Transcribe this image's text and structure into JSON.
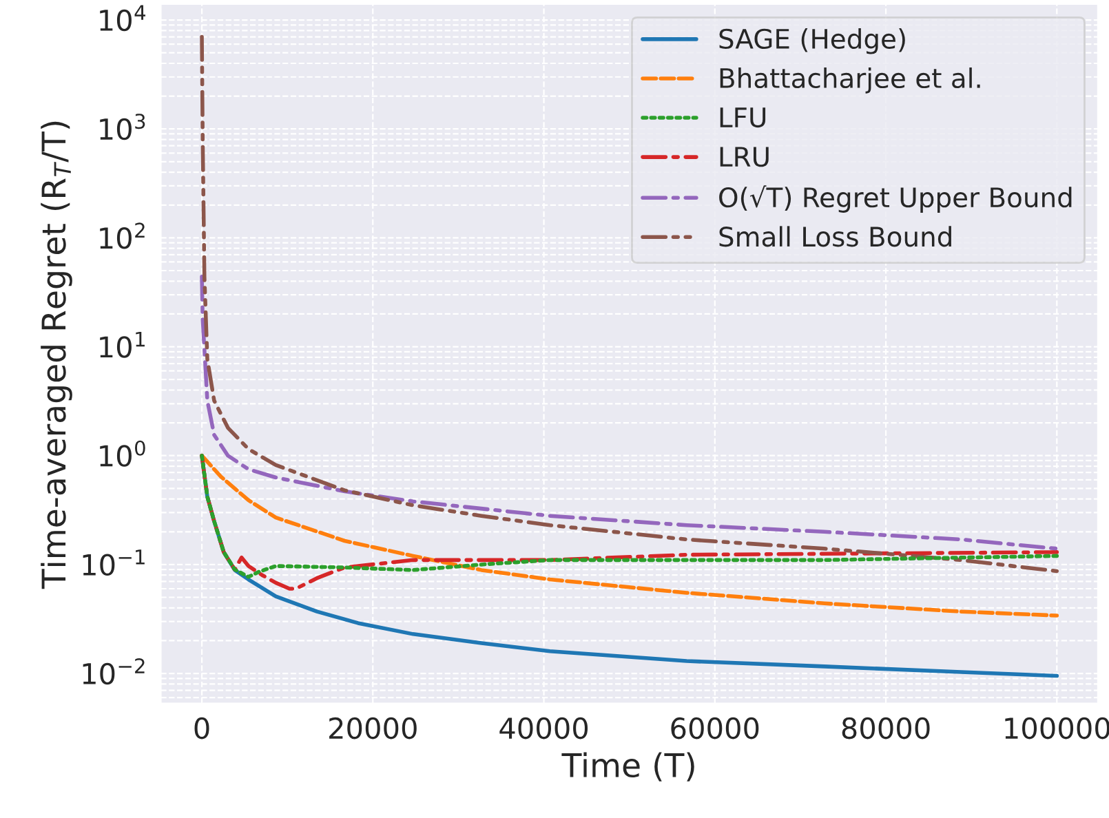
{
  "chart_data": {
    "type": "line",
    "xlabel": "Time (T)",
    "ylabel": "Time-averaged Regret (R$_{T}$/T)",
    "log": "y",
    "grid": true,
    "legend": "top right",
    "xlim": [
      -4800,
      104800
    ],
    "ylim": [
      0.0053,
      14000
    ],
    "xticks": [
      0,
      20000,
      40000,
      60000,
      80000,
      100000
    ],
    "yticks": [
      {
        "value": 0.01,
        "label": "10$^{−2}$"
      },
      {
        "value": 0.1,
        "label": "10$^{−1}$"
      },
      {
        "value": 1,
        "label": "10$^{0}$"
      },
      {
        "value": 10,
        "label": "10$^{1}$"
      },
      {
        "value": 100,
        "label": "10$^{2}$"
      },
      {
        "value": 1000,
        "label": "10$^{3}$"
      },
      {
        "value": 10000,
        "label": "10$^{4}$"
      }
    ],
    "series": [
      {
        "name": "SAGE (Hedge)",
        "color": "#1f77b4",
        "line_style": "solid",
        "x": [
          1,
          640,
          1440,
          2560,
          3850,
          5450,
          8650,
          13460,
          18270,
          24700,
          32700,
          40700,
          56700,
          72800,
          88800,
          100000
        ],
        "values": [
          1.0,
          0.42,
          0.25,
          0.13,
          0.089,
          0.073,
          0.051,
          0.037,
          0.029,
          0.023,
          0.019,
          0.016,
          0.013,
          0.0116,
          0.0103,
          0.0095
        ]
      },
      {
        "name": "Bhattacharjee et al.",
        "color": "#ff7f0e",
        "line_style": "dashed",
        "x": [
          1,
          2240,
          5450,
          8650,
          16700,
          24700,
          32700,
          40700,
          56700,
          72800,
          88800,
          100000
        ],
        "values": [
          1.0,
          0.64,
          0.39,
          0.27,
          0.165,
          0.12,
          0.089,
          0.073,
          0.055,
          0.044,
          0.037,
          0.034
        ]
      },
      {
        "name": "LFU",
        "color": "#2ca02c",
        "line_style": "dotted",
        "x": [
          1,
          640,
          1440,
          2560,
          3850,
          5450,
          6700,
          8650,
          16700,
          24700,
          32700,
          40700,
          56700,
          72800,
          100000
        ],
        "values": [
          1.0,
          0.42,
          0.25,
          0.13,
          0.09,
          0.077,
          0.086,
          0.097,
          0.094,
          0.089,
          0.1,
          0.11,
          0.11,
          0.11,
          0.12
        ]
      },
      {
        "name": "LRU",
        "color": "#d62728",
        "line_style": "dashdot",
        "x": [
          1,
          640,
          1440,
          2560,
          3850,
          4650,
          5450,
          7050,
          8650,
          10250,
          11000,
          13460,
          16700,
          24700,
          40700,
          56700,
          100000
        ],
        "values": [
          1.0,
          0.42,
          0.25,
          0.13,
          0.09,
          0.116,
          0.097,
          0.08,
          0.068,
          0.06,
          0.06,
          0.075,
          0.094,
          0.11,
          0.11,
          0.123,
          0.13
        ]
      },
      {
        "name": "O(√T) Regret Upper Bound",
        "color": "#9467bd",
        "line_style": "dashdot",
        "x": [
          1,
          100,
          640,
          1440,
          3050,
          5450,
          8650,
          16700,
          24700,
          40700,
          56700,
          72800,
          88800,
          100000
        ],
        "values": [
          44,
          18,
          3.2,
          1.55,
          1.0,
          0.75,
          0.63,
          0.47,
          0.38,
          0.28,
          0.23,
          0.2,
          0.17,
          0.14
        ]
      },
      {
        "name": "Small Loss Bound",
        "color": "#8c564b",
        "line_style": "dashdotdot",
        "x": [
          1,
          100,
          300,
          640,
          1440,
          3050,
          5450,
          8650,
          16700,
          24700,
          32700,
          40700,
          56700,
          72800,
          88800,
          100000
        ],
        "values": [
          7000,
          800,
          44,
          7.7,
          3.2,
          1.8,
          1.15,
          0.82,
          0.48,
          0.35,
          0.28,
          0.23,
          0.17,
          0.14,
          0.11,
          0.087
        ]
      }
    ]
  }
}
